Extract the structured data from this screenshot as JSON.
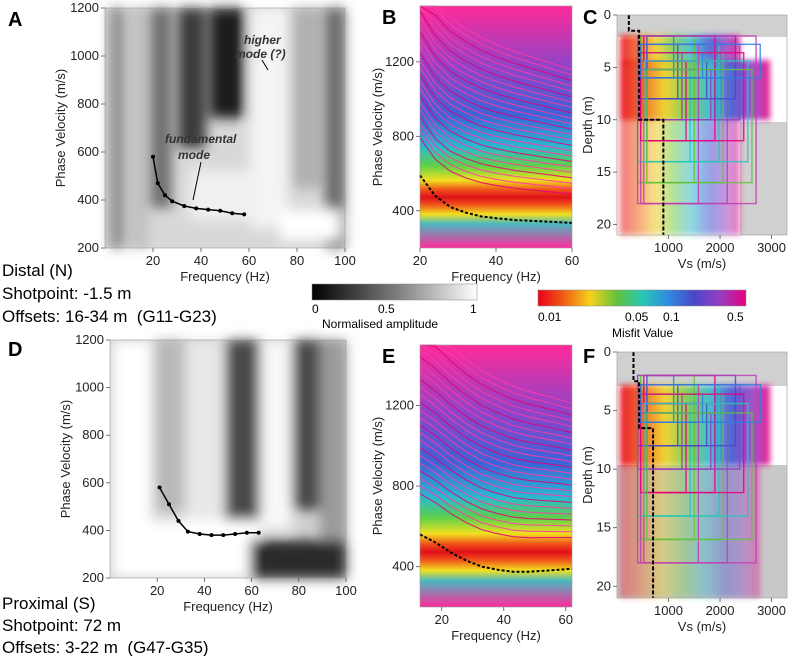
{
  "figure": {
    "panel_letters": [
      "A",
      "B",
      "C",
      "D",
      "E",
      "F"
    ],
    "distal": {
      "title": "Distal (N)",
      "shotpoint": "Shotpoint: -1.5 m",
      "offsets": "Offsets: 16-34 m  (G11-G23)"
    },
    "proximal": {
      "title": "Proximal (S)",
      "shotpoint": "Shotpoint: 72 m",
      "offsets": "Offsets: 3-22 m  (G47-G35)"
    },
    "colors": {
      "curve": "#000000",
      "misfit_low": "#e8001a",
      "misfit_high": "#e6007e",
      "gray_box": "#d0d0d0"
    }
  },
  "chart_data": [
    {
      "id": "A",
      "type": "heatmap",
      "xlabel": "Frequency (Hz)",
      "ylabel": "Phase Velocity (m/s)",
      "xlim": [
        0,
        100
      ],
      "ylim": [
        200,
        1200
      ],
      "xticks": [
        "20",
        "40",
        "60",
        "80",
        "100"
      ],
      "yticks": [
        "200",
        "400",
        "600",
        "800",
        "1000",
        "1200"
      ],
      "annotations": [
        "higher",
        "mode (?)",
        "fundamental",
        "mode"
      ],
      "curve": {
        "x": [
          20,
          22,
          25,
          28,
          33,
          38,
          43,
          48,
          53,
          58
        ],
        "y": [
          580,
          470,
          420,
          395,
          375,
          365,
          360,
          355,
          345,
          340
        ]
      }
    },
    {
      "id": "B",
      "type": "line",
      "xlabel": "Frequency (Hz)",
      "ylabel": "Phase Velocity (m/s)",
      "xlim": [
        20,
        60
      ],
      "ylim": [
        200,
        1500
      ],
      "xticks": [
        "20",
        "40",
        "60"
      ],
      "yticks": [
        "400",
        "800",
        "1200"
      ],
      "curve": {
        "x": [
          20,
          24,
          28,
          32,
          36,
          40,
          45,
          50,
          55,
          60
        ],
        "y": [
          590,
          480,
          420,
          390,
          370,
          360,
          350,
          345,
          340,
          335
        ]
      }
    },
    {
      "id": "C",
      "type": "line",
      "xlabel": "Vs (m/s)",
      "ylabel": "Depth (m)",
      "xlim": [
        0,
        3300
      ],
      "ylim": [
        0,
        21
      ],
      "xticks": [
        "1000",
        "2000",
        "3000"
      ],
      "yticks": [
        "0",
        "5",
        "10",
        "15",
        "20"
      ],
      "best_profile": {
        "vs": [
          230,
          230,
          430,
          430,
          900,
          900
        ],
        "depth": [
          0,
          1.5,
          1.5,
          10,
          10,
          21
        ]
      }
    },
    {
      "id": "D",
      "type": "heatmap",
      "xlabel": "Frequency (Hz)",
      "ylabel": "Phase Velocity (m/s)",
      "xlim": [
        0,
        100
      ],
      "ylim": [
        200,
        1200
      ],
      "xticks": [
        "20",
        "40",
        "60",
        "80",
        "100"
      ],
      "yticks": [
        "200",
        "400",
        "600",
        "800",
        "1000",
        "1200"
      ],
      "curve": {
        "x": [
          21,
          25,
          29,
          33,
          38,
          43,
          48,
          53,
          58,
          63
        ],
        "y": [
          580,
          510,
          440,
          395,
          385,
          380,
          380,
          385,
          390,
          390
        ]
      }
    },
    {
      "id": "E",
      "type": "line",
      "xlabel": "Frequency (Hz)",
      "ylabel": "Phase Velocity (m/s)",
      "xlim": [
        13,
        62
      ],
      "ylim": [
        200,
        1500
      ],
      "xticks": [
        "20",
        "40",
        "60"
      ],
      "yticks": [
        "400",
        "800",
        "1200"
      ],
      "curve": {
        "x": [
          13,
          18,
          23,
          28,
          33,
          38,
          43,
          48,
          53,
          58,
          62
        ],
        "y": [
          560,
          520,
          470,
          430,
          400,
          385,
          375,
          375,
          380,
          385,
          390
        ]
      }
    },
    {
      "id": "F",
      "type": "line",
      "xlabel": "Vs (m/s)",
      "ylabel": "Depth (m)",
      "xlim": [
        0,
        3300
      ],
      "ylim": [
        0,
        21
      ],
      "xticks": [
        "1000",
        "2000",
        "3000"
      ],
      "yticks": [
        "0",
        "5",
        "10",
        "15",
        "20"
      ],
      "best_profile": {
        "vs": [
          320,
          320,
          430,
          430,
          700,
          700
        ],
        "depth": [
          0,
          2.5,
          2.5,
          6.5,
          6.5,
          21
        ]
      }
    }
  ],
  "colorbars": {
    "amplitude": {
      "title": "Normalised amplitude",
      "ticks": [
        "0",
        "0.5",
        "1"
      ]
    },
    "misfit": {
      "title": "Misfit Value",
      "ticks": [
        "0.01",
        "0.05",
        "0.1",
        "0.5"
      ]
    }
  }
}
